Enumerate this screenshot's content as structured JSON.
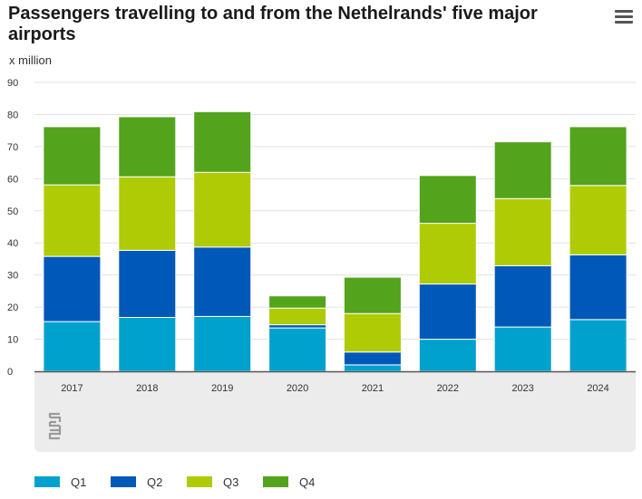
{
  "title": "Passengers travelling to and from the Nethelrands' five major airports",
  "menu_icon": "hamburger-menu-icon",
  "logo_icon": "cbs-logo-icon",
  "colors": {
    "Q1": "#00a1cd",
    "Q2": "#0058b8",
    "Q3": "#afcb05",
    "Q4": "#53a31d",
    "grid": "#e2e2e2",
    "axis_band": "#ececec"
  },
  "chart_data": {
    "type": "bar",
    "stacked": true,
    "title": "Passengers travelling to and from the Nethelrands' five major airports",
    "ylabel": "x million",
    "xlabel": "",
    "ylim": [
      0,
      90
    ],
    "yticks": [
      0,
      10,
      20,
      30,
      40,
      50,
      60,
      70,
      80,
      90
    ],
    "grid": true,
    "legend_position": "bottom",
    "categories": [
      "2017",
      "2018",
      "2019",
      "2020",
      "2021",
      "2022",
      "2023",
      "2024"
    ],
    "series": [
      {
        "name": "Q1",
        "values": [
          15.5,
          16.8,
          17.1,
          13.5,
          2.0,
          10.0,
          13.8,
          16.1
        ]
      },
      {
        "name": "Q2",
        "values": [
          20.3,
          20.9,
          21.6,
          1.0,
          4.0,
          17.2,
          19.1,
          20.2
        ]
      },
      {
        "name": "Q3",
        "values": [
          22.3,
          22.9,
          23.3,
          5.2,
          12.0,
          18.9,
          20.9,
          21.6
        ]
      },
      {
        "name": "Q4",
        "values": [
          18.1,
          18.7,
          18.9,
          3.8,
          11.3,
          14.9,
          17.7,
          18.3
        ]
      }
    ]
  }
}
